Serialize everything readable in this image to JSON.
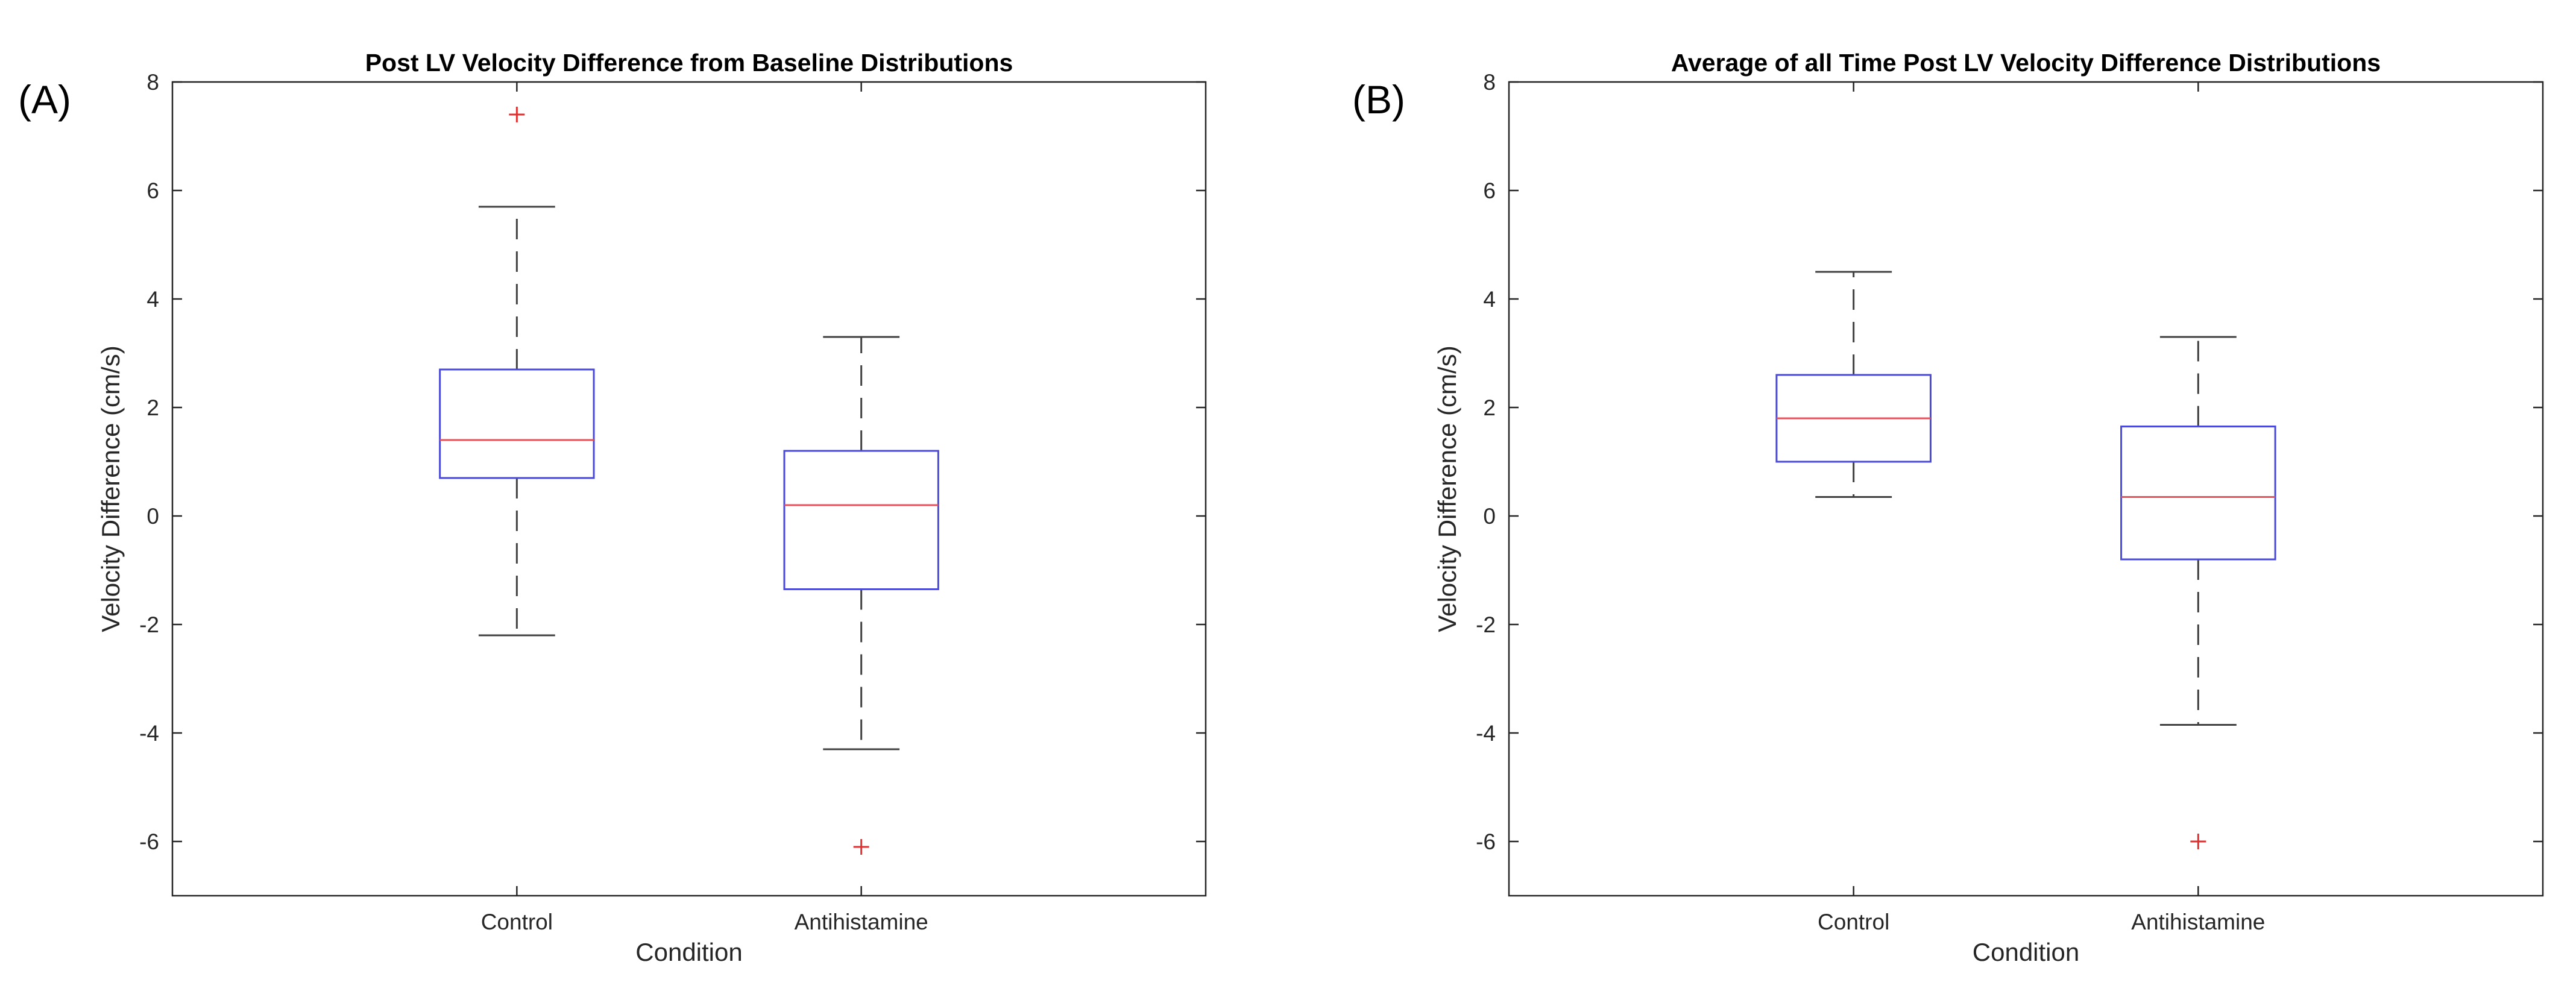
{
  "panels": [
    {
      "letter": "(A)"
    },
    {
      "letter": "(B)"
    }
  ],
  "colors": {
    "box": "#4a4ad6",
    "median": "#e8505a",
    "whisker": "#404040",
    "outlier": "#e03030",
    "axis": "#262626"
  },
  "chart_data": [
    {
      "type": "box",
      "title": "Post LV Velocity Difference from Baseline Distributions",
      "xlabel": "Condition",
      "ylabel": "Velocity Difference (cm/s)",
      "ylim": [
        -7,
        8
      ],
      "yticks": [
        -6,
        -4,
        -2,
        0,
        2,
        4,
        6,
        8
      ],
      "categories": [
        "Control",
        "Antihistamine"
      ],
      "grid": false,
      "boxes": [
        {
          "category": "Control",
          "whisker_low": -2.2,
          "q1": 0.7,
          "median": 1.4,
          "q3": 2.7,
          "whisker_high": 5.7,
          "outliers": [
            7.4
          ]
        },
        {
          "category": "Antihistamine",
          "whisker_low": -4.3,
          "q1": -1.35,
          "median": 0.2,
          "q3": 1.2,
          "whisker_high": 3.3,
          "outliers": [
            -6.1
          ]
        }
      ]
    },
    {
      "type": "box",
      "title": "Average of all Time Post LV Velocity Difference Distributions",
      "xlabel": "Condition",
      "ylabel": "Velocity Difference (cm/s)",
      "ylim": [
        -7,
        8
      ],
      "yticks": [
        -6,
        -4,
        -2,
        0,
        2,
        4,
        6,
        8
      ],
      "categories": [
        "Control",
        "Antihistamine"
      ],
      "grid": false,
      "boxes": [
        {
          "category": "Control",
          "whisker_low": 0.35,
          "q1": 1.0,
          "median": 1.8,
          "q3": 2.6,
          "whisker_high": 4.5,
          "outliers": []
        },
        {
          "category": "Antihistamine",
          "whisker_low": -3.85,
          "q1": -0.8,
          "median": 0.35,
          "q3": 1.65,
          "whisker_high": 3.3,
          "outliers": [
            -6.0
          ]
        }
      ]
    }
  ]
}
